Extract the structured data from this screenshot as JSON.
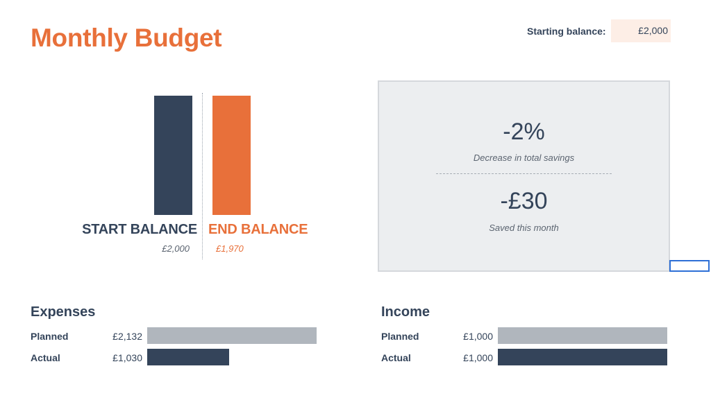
{
  "title": "Monthly Budget",
  "starting_balance": {
    "label": "Starting balance:",
    "value": "£2,000"
  },
  "balance_chart": {
    "start": {
      "label": "START BALANCE",
      "value_text": "£2,000",
      "amount": 2000,
      "color": "#34445a"
    },
    "end": {
      "label": "END BALANCE",
      "value_text": "£1,970",
      "amount": 1970,
      "color": "#e8703a"
    }
  },
  "summary": {
    "percent_change": "-2%",
    "percent_caption": "Decrease in total savings",
    "saved_amount": "-£30",
    "saved_caption": "Saved this month"
  },
  "expenses": {
    "title": "Expenses",
    "planned": {
      "label": "Planned",
      "value_text": "£2,132",
      "amount": 2132
    },
    "actual": {
      "label": "Actual",
      "value_text": "£1,030",
      "amount": 1030
    }
  },
  "income": {
    "title": "Income",
    "planned": {
      "label": "Planned",
      "value_text": "£1,000",
      "amount": 1000
    },
    "actual": {
      "label": "Actual",
      "value_text": "£1,000",
      "amount": 1000
    }
  },
  "colors": {
    "accent": "#e8703a",
    "navy": "#34445a",
    "planned_bar": "#b0b6bd",
    "selection": "#2d6fd6"
  }
}
